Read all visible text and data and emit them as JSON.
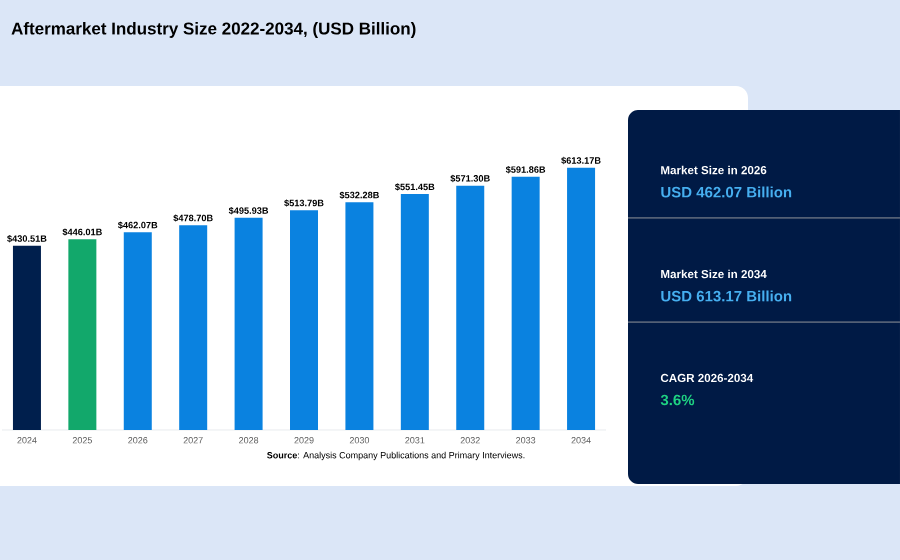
{
  "chart_data": {
    "type": "bar",
    "title": "Aftermarket Industry Size 2022-2034, (USD Billion)",
    "categories": [
      "2024",
      "2025",
      "2026",
      "2027",
      "2028",
      "2029",
      "2030",
      "2031",
      "2032",
      "2033",
      "2034"
    ],
    "values": [
      430.51,
      446.01,
      462.07,
      478.7,
      495.93,
      513.79,
      532.28,
      551.45,
      571.3,
      591.86,
      613.17
    ],
    "colors": [
      "#001f4d",
      "#12a86b",
      "#0a82e0",
      "#0a82e0",
      "#0a82e0",
      "#0a82e0",
      "#0a82e0",
      "#0a82e0",
      "#0a82e0",
      "#0a82e0",
      "#0a82e0"
    ],
    "value_labels": [
      "$430.51B",
      "$446.01B",
      "$462.07B",
      "$478.70B",
      "$495.93B",
      "$513.79B",
      "$532.28B",
      "$551.45B",
      "$571.30B",
      "$591.86B",
      "$613.17B"
    ],
    "tick_labels": "x",
    "annotations": [
      "Market Size in 2026",
      "USD 462.07 Billion",
      "Market Size in 2034",
      "USD 613.17 Billion",
      "CAGR 2026-2034",
      "3.6%",
      "**Source**: Analysis Company Publications and Primary Interviews."
    ]
  }
}
